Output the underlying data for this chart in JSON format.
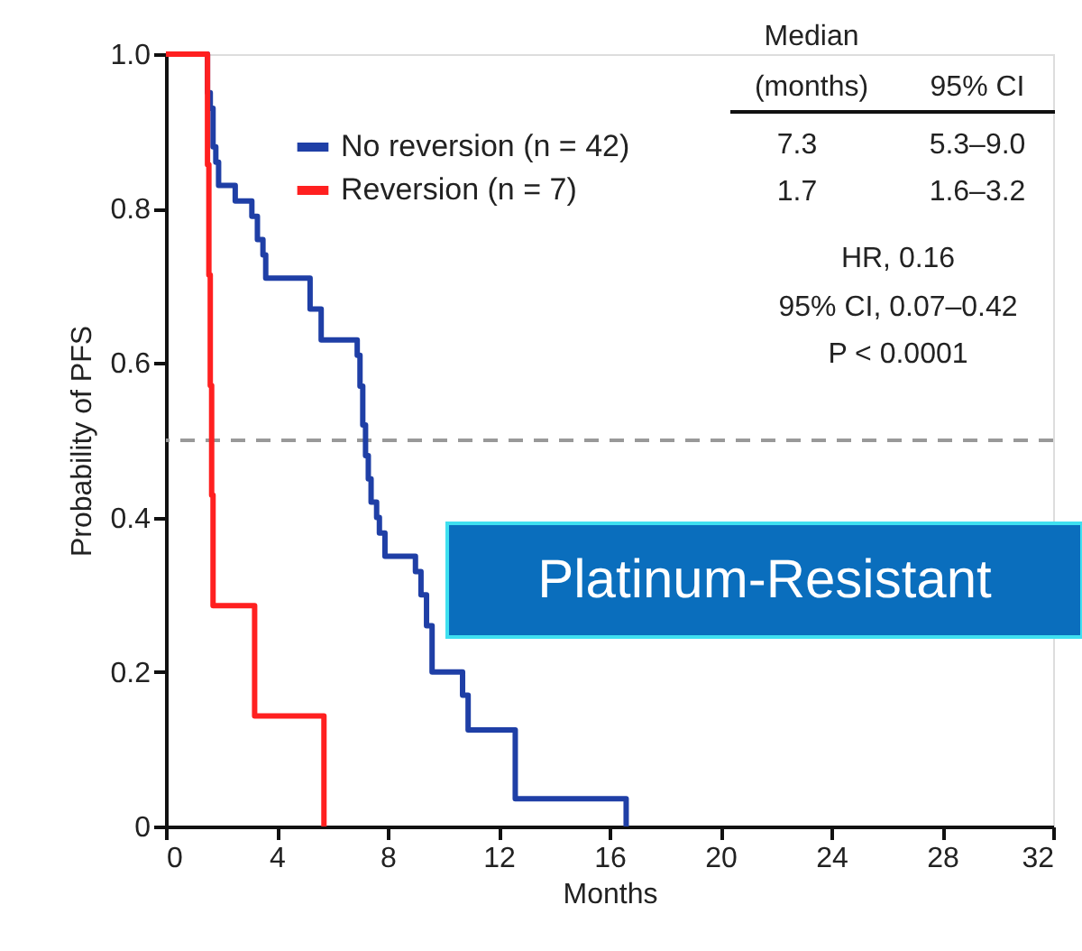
{
  "chart_data": {
    "type": "step",
    "xlabel": "Months",
    "ylabel": "Probability of PFS",
    "xlim": [
      0,
      32
    ],
    "xticks": [
      0,
      4,
      8,
      12,
      16,
      20,
      24,
      28,
      32
    ],
    "ylim": [
      0,
      1
    ],
    "yticks": [
      0,
      {
        "value": 0.2,
        "label": "0.2"
      },
      {
        "value": 0.4,
        "label": "0.4"
      },
      {
        "value": 0.6,
        "label": "0.6"
      },
      {
        "value": 0.8,
        "label": "0.8"
      },
      {
        "value": 1,
        "label": "1.0"
      }
    ],
    "grid": false,
    "legend": "top",
    "line_style": "solid",
    "marker": "none",
    "series": [
      {
        "name": "No reversion (n = 42)",
        "color": "#1f3fa6",
        "x": [
          0,
          1.5,
          1.6,
          1.7,
          1.8,
          1.9,
          2.5,
          3.1,
          3.3,
          3.5,
          3.6,
          5.2,
          5.6,
          6.9,
          7.0,
          7.1,
          7.2,
          7.3,
          7.4,
          7.6,
          7.7,
          7.9,
          9.0,
          9.2,
          9.4,
          9.6,
          10.7,
          10.9,
          12.6,
          16.6
        ],
        "values": [
          1,
          0.95,
          0.93,
          0.88,
          0.86,
          0.83,
          0.81,
          0.79,
          0.76,
          0.74,
          0.71,
          0.67,
          0.63,
          0.61,
          0.57,
          0.52,
          0.48,
          0.45,
          0.42,
          0.4,
          0.38,
          0.35,
          0.33,
          0.3,
          0.26,
          0.2,
          0.17,
          0.125,
          0.036,
          0
        ]
      },
      {
        "name": "Reversion (n = 7)",
        "color": "#ff2020",
        "x": [
          0,
          1.5,
          1.55,
          1.6,
          1.65,
          1.7,
          3.2,
          5.7
        ],
        "values": [
          1,
          0.857,
          0.714,
          0.571,
          0.429,
          0.286,
          0.143,
          0
        ]
      }
    ],
    "ref_lines": [
      {
        "axis": "y",
        "value": 0.5,
        "color": "#999999",
        "line_style": "dashed"
      }
    ],
    "annotations": [
      "Median",
      "(months)",
      "95% CI",
      "7.3",
      "5.3–9.0",
      "1.7",
      "1.6–3.2",
      "HR, 0.16",
      "95% CI, 0.07–0.42",
      "P < 0.0001",
      "Platinum-Resistant"
    ]
  }
}
